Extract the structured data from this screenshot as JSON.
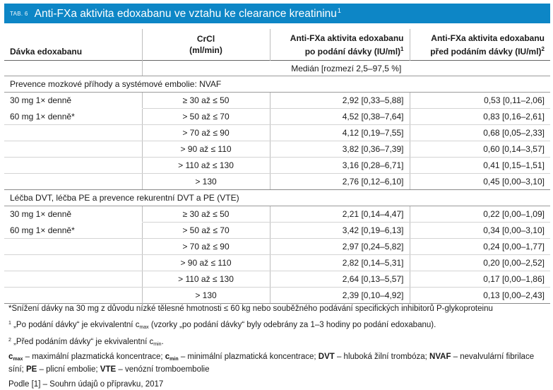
{
  "title": {
    "tab_label": "TAB. 6",
    "text": "Anti-FXa aktivita edoxabanu ve vztahu ke clearance kreatininu",
    "sup": "1"
  },
  "columns": {
    "dose": "Dávka edoxabanu",
    "crcl_l1": "CrCl",
    "crcl_l2": "(ml/min)",
    "after_l1": "Anti-FXa aktivita edoxabanu",
    "after_l2": "po podání dávky (IU/ml)",
    "after_sup": "1",
    "before_l1": "Anti-FXa aktivita edoxabanu",
    "before_l2": "před podáním dávky (IU/ml)",
    "before_sup": "2"
  },
  "median_label": "Medián [rozmezí 2,5–97,5 %]",
  "sections": [
    {
      "title": "Prevence mozkové příhody a systémové embolie: NVAF",
      "rows": [
        {
          "dose": "30 mg 1× denně",
          "crcl": "≥ 30 až ≤ 50",
          "after": "2,92 [0,33–5,88]",
          "before": "0,53 [0,11–2,06]"
        },
        {
          "dose": "60 mg 1× denně*",
          "crcl": "> 50 až ≤ 70",
          "after": "4,52 [0,38–7,64]",
          "before": "0,83 [0,16–2,61]"
        },
        {
          "dose": "",
          "crcl": "> 70 až ≤ 90",
          "after": "4,12 [0,19–7,55]",
          "before": "0,68 [0,05–2,33]"
        },
        {
          "dose": "",
          "crcl": "> 90 až ≤ 110",
          "after": "3,82 [0,36–7,39]",
          "before": "0,60 [0,14–3,57]"
        },
        {
          "dose": "",
          "crcl": "> 110 až ≤ 130",
          "after": "3,16 [0,28–6,71]",
          "before": "0,41 [0,15–1,51]"
        },
        {
          "dose": "",
          "crcl": "> 130",
          "after": "2,76 [0,12–6,10]",
          "before": "0,45 [0,00–3,10]"
        }
      ]
    },
    {
      "title": "Léčba DVT, léčba PE a prevence rekurentní DVT a PE (VTE)",
      "rows": [
        {
          "dose": "30 mg 1× denně",
          "crcl": "≥ 30 až ≤ 50",
          "after": "2,21 [0,14–4,47]",
          "before": "0,22 [0,00–1,09]"
        },
        {
          "dose": "60 mg 1× denně*",
          "crcl": "> 50 až ≤ 70",
          "after": "3,42 [0,19–6,13]",
          "before": "0,34 [0,00–3,10]"
        },
        {
          "dose": "",
          "crcl": "> 70 až ≤ 90",
          "after": "2,97 [0,24–5,82]",
          "before": "0,24 [0,00–1,77]"
        },
        {
          "dose": "",
          "crcl": "> 90 až ≤ 110",
          "after": "2,82 [0,14–5,31]",
          "before": "0,20 [0,00–2,52]"
        },
        {
          "dose": "",
          "crcl": "> 110 až ≤ 130",
          "after": "2,64 [0,13–5,57]",
          "before": "0,17 [0,00–1,86]"
        },
        {
          "dose": "",
          "crcl": "> 130",
          "after": "2,39 [0,10–4,92]",
          "before": "0,13 [0,00–2,43]"
        }
      ]
    }
  ],
  "footnotes": {
    "f1": "*Snížení dávky na 30 mg z důvodu nízké tělesné hmotnosti ≤ 60 kg nebo souběžného podávání specifických inhibitorů P-glykoproteinu",
    "f2_sup": "1",
    "f2_a": " „Po podání dávky“ je ekvivalentní c",
    "f2_sub": "max",
    "f2_b": " (vzorky „po podání dávky“ byly odebrány za 1–3 hodiny po podání edoxabanu).",
    "f3_sup": "2",
    "f3_a": " „Před podáním dávky“ je ekvivalentní c",
    "f3_sub": "min",
    "f3_b": ".",
    "abbr_cmax_c": "c",
    "abbr_cmax_sub": "max",
    "abbr_cmax_text": " – maximální plazmatická koncentrace; ",
    "abbr_cmin_c": "c",
    "abbr_cmin_sub": "min",
    "abbr_cmin_text": " – minimální plazmatická koncentrace; ",
    "abbr_dvt": "DVT",
    "abbr_dvt_text": " – hluboká žilní trombóza; ",
    "abbr_nvaf": "NVAF",
    "abbr_nvaf_text": " – nevalvulární fibrilace síní; ",
    "abbr_pe": "PE",
    "abbr_pe_text": " – plicní embolie; ",
    "abbr_vte": "VTE",
    "abbr_vte_text": " – venózní tromboembolie",
    "source": "Podle [1] – Souhrn údajů o přípravku, 2017"
  }
}
